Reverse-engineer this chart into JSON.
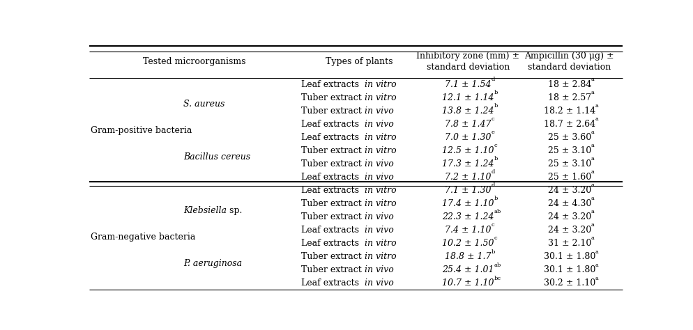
{
  "col_headers": [
    "Tested microorganisms",
    "Types of plants",
    "Inhibitory zone (mm) ±\nstandard deviation",
    "Ampicillin (30 μg) ±\nstandard deviation"
  ],
  "rows": [
    {
      "group": "Gram-positive bacteria",
      "organism": "S. aureus",
      "plant_type_normal": "Leaf extracts  ",
      "plant_type_italic": "in vitro",
      "inhibitory": "7.1 ± 1.54",
      "inhibitory_super": "d",
      "ampicillin": "18 ± 2.84",
      "ampicillin_super": "a"
    },
    {
      "group": "",
      "organism": "",
      "plant_type_normal": "Tuber extract ",
      "plant_type_italic": "in vitro",
      "inhibitory": "12.1 ± 1.14",
      "inhibitory_super": "b",
      "ampicillin": "18 ± 2.57",
      "ampicillin_super": "a"
    },
    {
      "group": "",
      "organism": "",
      "plant_type_normal": "Tuber extract ",
      "plant_type_italic": "in vivo",
      "inhibitory": "13.8 ± 1.24",
      "inhibitory_super": "b",
      "ampicillin": "18.2 ± 1.14",
      "ampicillin_super": "a"
    },
    {
      "group": "",
      "organism": "",
      "plant_type_normal": "Leaf extracts  ",
      "plant_type_italic": "in vivo",
      "inhibitory": "7.8 ± 1.47",
      "inhibitory_super": "c",
      "ampicillin": "18.7 ± 2.64",
      "ampicillin_super": "a"
    },
    {
      "group": "",
      "organism": "Bacillus cereus",
      "plant_type_normal": "Leaf extracts  ",
      "plant_type_italic": "in vitro",
      "inhibitory": "7.0 ± 1.30",
      "inhibitory_super": "e",
      "ampicillin": "25 ± 3.60",
      "ampicillin_super": "a"
    },
    {
      "group": "",
      "organism": "",
      "plant_type_normal": "Tuber extract ",
      "plant_type_italic": "in vitro",
      "inhibitory": "12.5 ± 1.10",
      "inhibitory_super": "c",
      "ampicillin": "25 ± 3.10",
      "ampicillin_super": "a"
    },
    {
      "group": "",
      "organism": "",
      "plant_type_normal": "Tuber extract ",
      "plant_type_italic": "in vivo",
      "inhibitory": "17.3 ± 1.24",
      "inhibitory_super": "b",
      "ampicillin": "25 ± 3.10",
      "ampicillin_super": "a"
    },
    {
      "group": "",
      "organism": "",
      "plant_type_normal": "Leaf extracts  ",
      "plant_type_italic": "in vivo",
      "inhibitory": "7.2 ± 1.10",
      "inhibitory_super": "d",
      "ampicillin": "25 ± 1.60",
      "ampicillin_super": "a"
    },
    {
      "group": "Gram-negative bacteria",
      "organism": "Klebsiella sp.",
      "organism_klebsiella": true,
      "plant_type_normal": "Leaf extracts  ",
      "plant_type_italic": "in vitro",
      "inhibitory": "7.1 ± 1.30",
      "inhibitory_super": "d",
      "ampicillin": "24 ± 3.20",
      "ampicillin_super": "a"
    },
    {
      "group": "",
      "organism": "",
      "plant_type_normal": "Tuber extract ",
      "plant_type_italic": "in vitro",
      "inhibitory": "17.4 ± 1.10",
      "inhibitory_super": "b",
      "ampicillin": "24 ± 4.30",
      "ampicillin_super": "a"
    },
    {
      "group": "",
      "organism": "",
      "plant_type_normal": "Tuber extract ",
      "plant_type_italic": "in vivo",
      "inhibitory": "22.3 ± 1.24",
      "inhibitory_super": "ab",
      "ampicillin": "24 ± 3.20",
      "ampicillin_super": "a"
    },
    {
      "group": "",
      "organism": "",
      "plant_type_normal": "Leaf extracts  ",
      "plant_type_italic": "in vivo",
      "inhibitory": "7.4 ± 1.10",
      "inhibitory_super": "c",
      "ampicillin": "24 ± 3.20",
      "ampicillin_super": "a"
    },
    {
      "group": "",
      "organism": "P. aeruginosa",
      "plant_type_normal": "Leaf extracts  ",
      "plant_type_italic": "in vitro",
      "inhibitory": "10.2 ± 1.50",
      "inhibitory_super": "c",
      "ampicillin": "31 ± 2.10",
      "ampicillin_super": "a"
    },
    {
      "group": "",
      "organism": "",
      "plant_type_normal": "Tuber extract ",
      "plant_type_italic": "in vitro",
      "inhibitory": "18.8 ± 1.7",
      "inhibitory_super": "b",
      "ampicillin": "30.1 ± 1.80",
      "ampicillin_super": "a"
    },
    {
      "group": "",
      "organism": "",
      "plant_type_normal": "Tuber extract ",
      "plant_type_italic": "in vivo",
      "inhibitory": "25.4 ± 1.01",
      "inhibitory_super": "ab",
      "ampicillin": "30.1 ± 1.80",
      "ampicillin_super": "a"
    },
    {
      "group": "",
      "organism": "",
      "plant_type_normal": "Leaf extracts  ",
      "plant_type_italic": "in vivo",
      "inhibitory": "10.7 ± 1.10",
      "inhibitory_super": "bc",
      "ampicillin": "30.2 ± 1.10",
      "ampicillin_super": "a"
    }
  ],
  "organism_spans": {
    "S. aureus": [
      0,
      3
    ],
    "Bacillus cereus": [
      4,
      7
    ],
    "Klebsiella sp.": [
      8,
      11
    ],
    "P. aeruginosa": [
      12,
      15
    ]
  },
  "group_spans": {
    "Gram-positive bacteria": [
      0,
      7
    ],
    "Gram-negative bacteria": [
      8,
      15
    ]
  },
  "separator_after_row": 7,
  "bg_color": "#ffffff",
  "font_size": 9,
  "header_font_size": 9
}
